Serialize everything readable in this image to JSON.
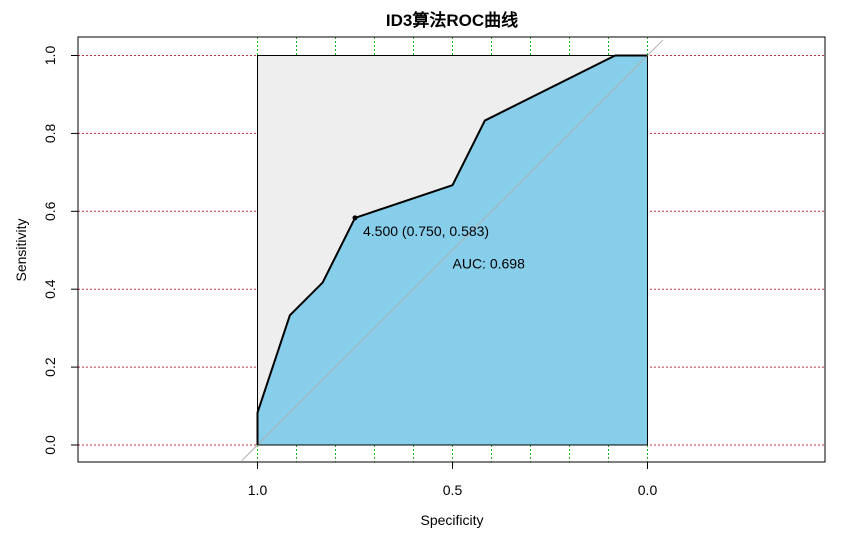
{
  "chart_data": {
    "type": "area",
    "title": "ID3算法ROC曲线",
    "xlabel": "Specificity",
    "ylabel": "Sensitivity",
    "x_reversed": true,
    "xlim": [
      1.0,
      0.0
    ],
    "ylim": [
      0.0,
      1.0
    ],
    "x_ticks": [
      "1.0",
      "0.5",
      "0.0"
    ],
    "x_tick_values": [
      1.0,
      0.5,
      0.0
    ],
    "y_ticks": [
      "0.0",
      "0.2",
      "0.4",
      "0.6",
      "0.8",
      "1.0"
    ],
    "y_tick_values": [
      0.0,
      0.2,
      0.4,
      0.6,
      0.8,
      1.0
    ],
    "grid": {
      "horizontal": true,
      "horizontal_color": "#c0303a",
      "vertical": true,
      "vertical_color": "#22b322",
      "vertical_x": [
        1.0,
        0.9,
        0.8,
        0.7,
        0.6,
        0.5,
        0.4,
        0.3,
        0.2,
        0.1,
        0.0
      ]
    },
    "series": [
      {
        "x": [
          1.0,
          1.0,
          0.917,
          0.875,
          0.833,
          0.75,
          0.5,
          0.417,
          0.083,
          0.0
        ],
        "y": [
          0.0,
          0.083,
          0.333,
          0.375,
          0.417,
          0.583,
          0.667,
          0.833,
          1.0,
          1.0
        ]
      }
    ],
    "auc_fill_color": "#87ceeb",
    "partial_fill_color": "#eeeeee",
    "diagonal_color": "#b0b0b0",
    "best_threshold": {
      "x": 0.75,
      "y": 0.583,
      "label": "4.500 (0.750, 0.583)"
    },
    "auc_label": "AUC: 0.698"
  }
}
